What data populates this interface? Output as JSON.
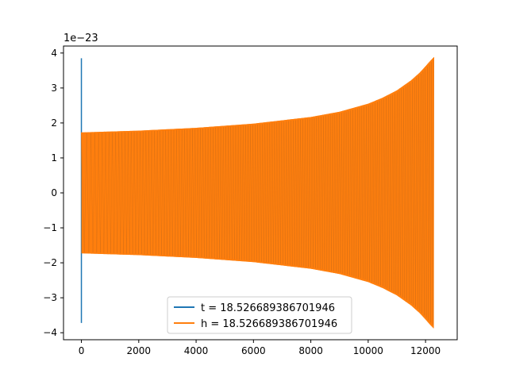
{
  "chart_data": {
    "type": "line",
    "offset_label": "1e−23",
    "xlim": [
      -624,
      13104
    ],
    "ylim": [
      -4.2,
      4.2
    ],
    "x_ticks": [
      {
        "value": 0,
        "label": "0"
      },
      {
        "value": 2000,
        "label": "2000"
      },
      {
        "value": 4000,
        "label": "4000"
      },
      {
        "value": 6000,
        "label": "6000"
      },
      {
        "value": 8000,
        "label": "8000"
      },
      {
        "value": 10000,
        "label": "10000"
      },
      {
        "value": 12000,
        "label": "12000"
      }
    ],
    "y_ticks": [
      {
        "value": -4,
        "label": "−4"
      },
      {
        "value": -3,
        "label": "−3"
      },
      {
        "value": -2,
        "label": "−2"
      },
      {
        "value": -1,
        "label": "−1"
      },
      {
        "value": 0,
        "label": "0"
      },
      {
        "value": 1,
        "label": "1"
      },
      {
        "value": 2,
        "label": "2"
      },
      {
        "value": 3,
        "label": "3"
      },
      {
        "value": 4,
        "label": "4"
      }
    ],
    "legend_position": "lower-center",
    "grid": false,
    "series": [
      {
        "name": "t = 18.526689386701946",
        "color": "#1f77b4",
        "spike_x": 0,
        "spike_y": [
          -3.72,
          3.85
        ]
      },
      {
        "name": "h = 18.526689386701946",
        "color": "#ff7f0e",
        "x_range": [
          0,
          12288
        ],
        "envelope": {
          "x": [
            0,
            2000,
            4000,
            6000,
            8000,
            9000,
            10000,
            10500,
            11000,
            11500,
            11800,
            12000,
            12150,
            12288
          ],
          "y": [
            1.73,
            1.78,
            1.86,
            1.98,
            2.17,
            2.32,
            2.55,
            2.72,
            2.93,
            3.22,
            3.44,
            3.62,
            3.76,
            3.88
          ]
        },
        "cycles": 420
      }
    ]
  }
}
